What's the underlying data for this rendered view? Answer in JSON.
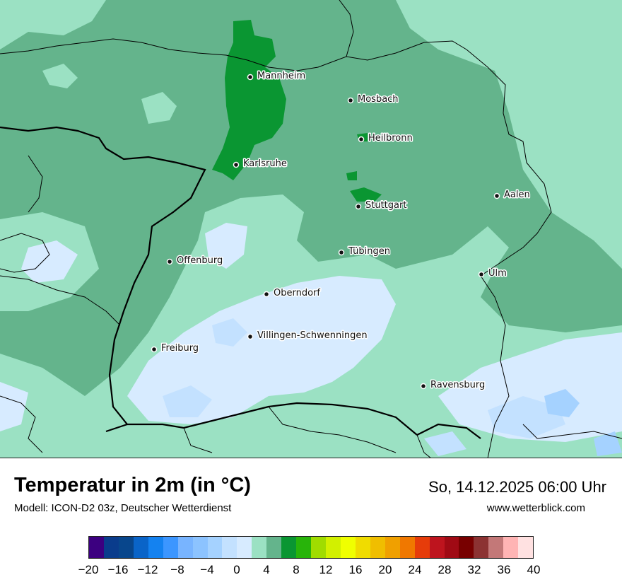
{
  "header": {
    "title": "Temperatur in 2m (in °C)",
    "model": "Modell: ICON-D2 03z, Deutscher Wetterdienst",
    "datetime": "So, 14.12.2025 06:00 Uhr",
    "website": "www.wetterblick.com"
  },
  "map": {
    "cities": [
      {
        "name": "Mannheim"
      },
      {
        "name": "Mosbach"
      },
      {
        "name": "Heilbronn"
      },
      {
        "name": "Karlsruhe"
      },
      {
        "name": "Aalen"
      },
      {
        "name": "Stuttgart"
      },
      {
        "name": "Tübingen"
      },
      {
        "name": "Offenburg"
      },
      {
        "name": "Ulm"
      },
      {
        "name": "Oberndorf"
      },
      {
        "name": "Villingen-Schwenningen"
      },
      {
        "name": "Freiburg"
      },
      {
        "name": "Ravensburg"
      }
    ]
  },
  "legend": {
    "unit": "°C",
    "min": -20,
    "max": 40,
    "step": 2,
    "colors": [
      "#3c0080",
      "#0a3c8c",
      "#08468c",
      "#0a64c8",
      "#1482f0",
      "#3c96ff",
      "#78b4ff",
      "#8cc3ff",
      "#a5d2ff",
      "#c3e1ff",
      "#d7ebff",
      "#9be1c3",
      "#64b48c",
      "#0a9632",
      "#28b40a",
      "#a0dc00",
      "#d2f000",
      "#f0ff00",
      "#f0dc00",
      "#f0be00",
      "#f0a000",
      "#f07800",
      "#e63c0a",
      "#be141e",
      "#a00a14",
      "#780000",
      "#8c3232",
      "#c37878",
      "#ffb4b4",
      "#ffe1e1"
    ],
    "tick_labels": [
      "−20",
      "−16",
      "−12",
      "−8",
      "−4",
      "0",
      "4",
      "8",
      "12",
      "16",
      "20",
      "24",
      "28",
      "32",
      "36",
      "40"
    ]
  }
}
